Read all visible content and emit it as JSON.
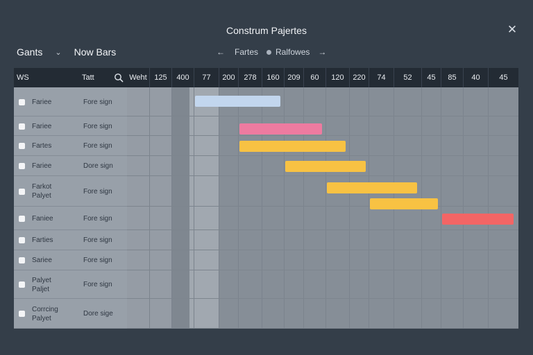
{
  "window": {
    "title": "Construm Pajertes"
  },
  "toolbar": {
    "view_label": "Gants",
    "action_label": "Now Bars",
    "nav_views": [
      "Fartes",
      "Ralfowes"
    ],
    "close_icon": "close-icon",
    "chevron_icon": "chevron-down-icon",
    "prev_icon": "arrow-left-icon",
    "next_icon": "arrow-right-icon"
  },
  "grid": {
    "col_ws": "WS",
    "col_task": "Tatt",
    "search_icon": "search-icon",
    "date_headers": [
      "Weht",
      "125",
      "400",
      "77",
      "200",
      "278",
      "160",
      "209",
      "60",
      "120",
      "220",
      "74",
      "52",
      "45",
      "85",
      "40",
      "45"
    ],
    "rows": [
      {
        "name": [
          "Fariee"
        ],
        "task": "Fore sign"
      },
      {
        "name": [
          "Fariee"
        ],
        "task": "Fore sign"
      },
      {
        "name": [
          "Fartes"
        ],
        "task": "Fore sign"
      },
      {
        "name": [
          "Fariee"
        ],
        "task": "Dore sign"
      },
      {
        "name": [
          "Farkot",
          "Palyet"
        ],
        "task": "Fore sign"
      },
      {
        "name": [
          "Faniee"
        ],
        "task": "Fore sign"
      },
      {
        "name": [
          "Farties"
        ],
        "task": "Fore sign"
      },
      {
        "name": [
          "Sariee"
        ],
        "task": "Fore sign"
      },
      {
        "name": [
          "Palyet",
          "Paljet"
        ],
        "task": "Fore sign"
      },
      {
        "name": [
          "Corrcing",
          "Palyet"
        ],
        "task": "Dore sige"
      }
    ],
    "bars": [
      {
        "row": 0,
        "start": 3,
        "end": 6,
        "color": "#c2d6ee"
      },
      {
        "row": 1,
        "start": 5,
        "end": 8,
        "color": "#ee7ba0"
      },
      {
        "row": 2,
        "start": 5,
        "end": 9,
        "color": "#f8c243"
      },
      {
        "row": 3,
        "start": 7,
        "end": 10,
        "color": "#f8c243"
      },
      {
        "row": 4,
        "start": 9,
        "end": 12,
        "color": "#f8c243"
      },
      {
        "row": 4,
        "start": 11,
        "end": 13,
        "color": "#f8c243"
      },
      {
        "row": 5,
        "start": 14,
        "end": 16,
        "color": "#f36565"
      }
    ]
  }
}
